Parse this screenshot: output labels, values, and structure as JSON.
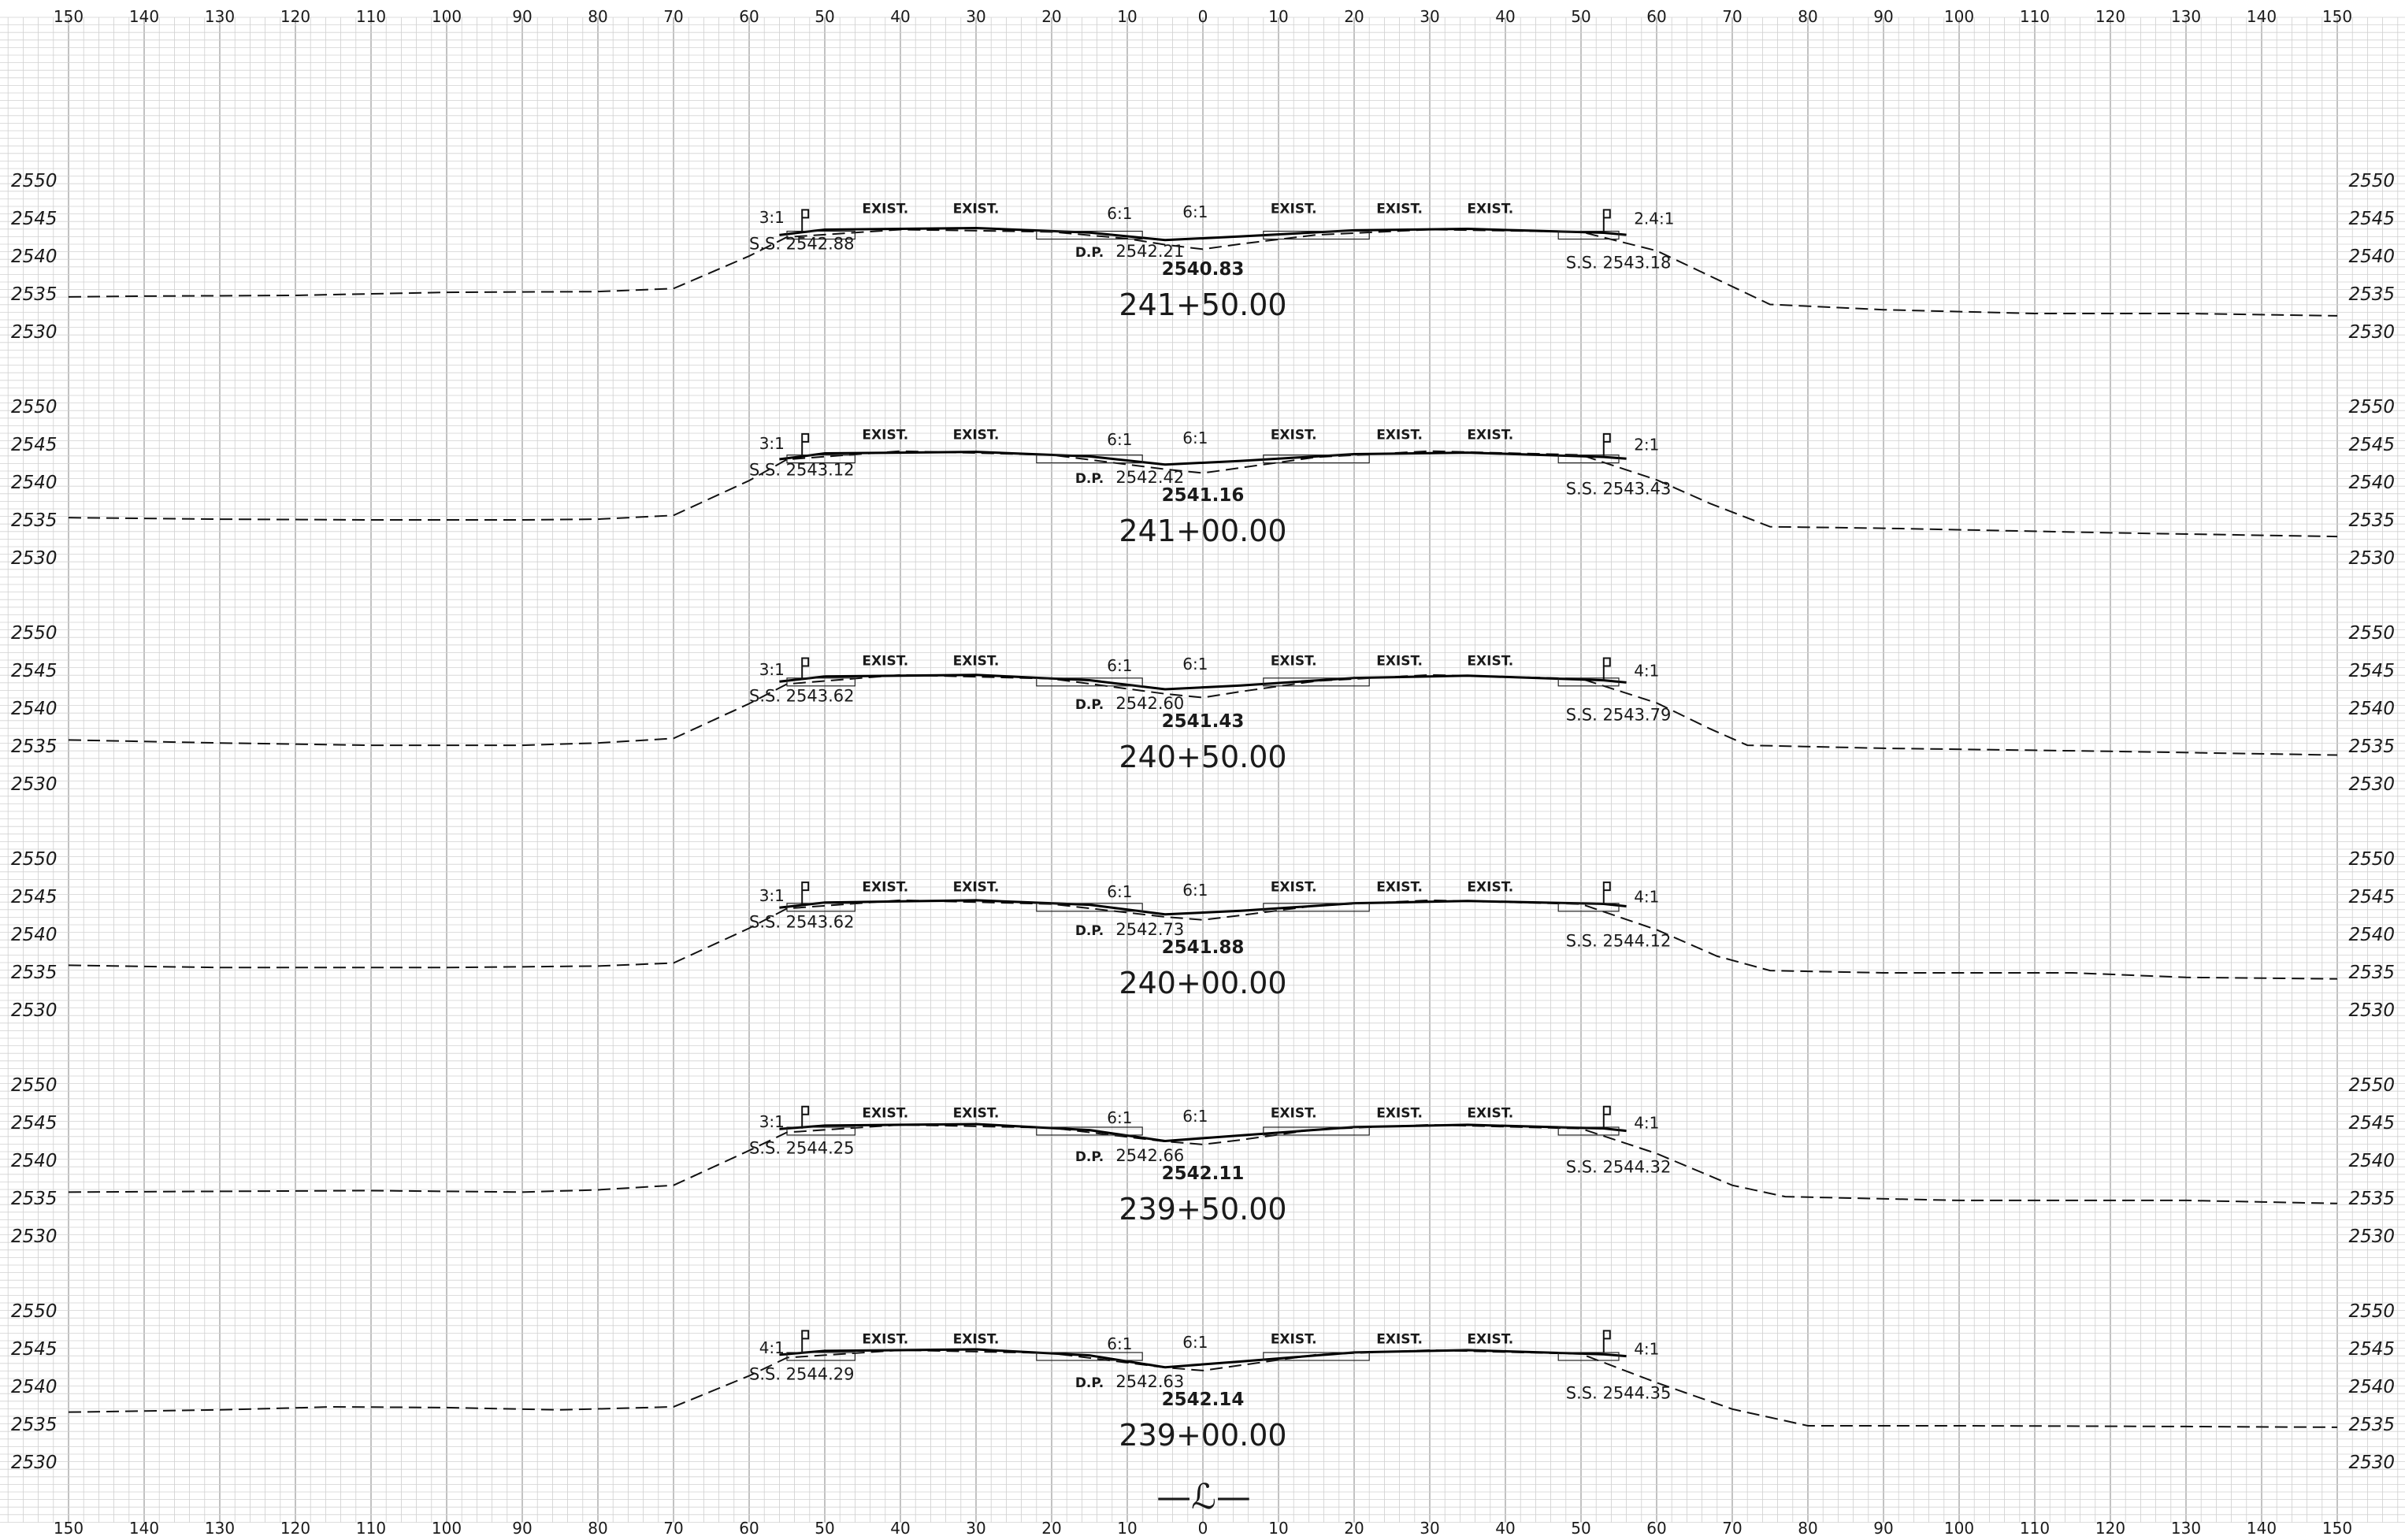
{
  "offset_ticks": [
    "150",
    "140",
    "130",
    "120",
    "110",
    "100",
    "90",
    "80",
    "70",
    "60",
    "50",
    "40",
    "30",
    "20",
    "10",
    "0",
    "10",
    "20",
    "30",
    "40",
    "50",
    "60",
    "70",
    "80",
    "90",
    "100",
    "110",
    "120",
    "130",
    "140",
    "150"
  ],
  "elevation_ticks": [
    "2550",
    "2545",
    "2540",
    "2535",
    "2530"
  ],
  "centerline_symbol": "—ℒ—",
  "sections": [
    {
      "station": "241+50.00",
      "subgrade": "2540.83",
      "dp_label": "D.P.",
      "dp_value": "2542.21",
      "ss_left": "S.S. 2542.88",
      "ss_right": "S.S. 2543.18",
      "slope_left": "3:1",
      "slope_mid_left": "6:1",
      "slope_mid_right": "6:1",
      "slope_right": "2.4:1",
      "exist_labels": [
        "EXIST.",
        "EXIST.",
        "EXIST.",
        "EXIST.",
        "EXIST."
      ],
      "existing": [
        [
          -150,
          2534.7
        ],
        [
          -140,
          2534.8
        ],
        [
          -120,
          2534.9
        ],
        [
          -100,
          2535.3
        ],
        [
          -80,
          2535.4
        ],
        [
          -70,
          2535.8
        ],
        [
          -60,
          2540.1
        ],
        [
          -55,
          2542.6
        ],
        [
          -40,
          2543.6
        ],
        [
          -20,
          2543.3
        ],
        [
          -10,
          2542.4
        ],
        [
          -5,
          2541.6
        ],
        [
          0,
          2541.0
        ],
        [
          5,
          2541.7
        ],
        [
          15,
          2542.9
        ],
        [
          30,
          2543.6
        ],
        [
          50,
          2543.3
        ],
        [
          60,
          2540.8
        ],
        [
          75,
          2533.7
        ],
        [
          90,
          2533.0
        ],
        [
          110,
          2532.5
        ],
        [
          130,
          2532.5
        ],
        [
          150,
          2532.2
        ]
      ],
      "proposed": [
        [
          -56,
          2542.88
        ],
        [
          -50,
          2543.6
        ],
        [
          -30,
          2543.8
        ],
        [
          -15,
          2543.2
        ],
        [
          -5,
          2542.21
        ],
        [
          5,
          2542.7
        ],
        [
          20,
          2543.5
        ],
        [
          35,
          2543.7
        ],
        [
          53,
          2543.18
        ],
        [
          56,
          2542.9
        ]
      ]
    },
    {
      "station": "241+00.00",
      "subgrade": "2541.16",
      "dp_label": "D.P.",
      "dp_value": "2542.42",
      "ss_left": "S.S. 2543.12",
      "ss_right": "S.S. 2543.43",
      "slope_left": "3:1",
      "slope_mid_left": "6:1",
      "slope_mid_right": "6:1",
      "slope_right": "2:1",
      "exist_labels": [
        "EXIST.",
        "EXIST.",
        "EXIST.",
        "EXIST.",
        "EXIST."
      ],
      "existing": [
        [
          -150,
          2535.4
        ],
        [
          -130,
          2535.2
        ],
        [
          -110,
          2535.1
        ],
        [
          -90,
          2535.1
        ],
        [
          -80,
          2535.2
        ],
        [
          -70,
          2535.7
        ],
        [
          -60,
          2540.3
        ],
        [
          -55,
          2543.1
        ],
        [
          -40,
          2544.2
        ],
        [
          -20,
          2543.7
        ],
        [
          -5,
          2541.8
        ],
        [
          0,
          2541.3
        ],
        [
          5,
          2542.0
        ],
        [
          15,
          2543.4
        ],
        [
          30,
          2544.2
        ],
        [
          50,
          2543.7
        ],
        [
          60,
          2540.4
        ],
        [
          67,
          2537.3
        ],
        [
          75,
          2534.2
        ],
        [
          90,
          2534.0
        ],
        [
          120,
          2533.4
        ],
        [
          150,
          2532.9
        ]
      ],
      "proposed": [
        [
          -56,
          2543.12
        ],
        [
          -50,
          2543.9
        ],
        [
          -30,
          2544.1
        ],
        [
          -15,
          2543.5
        ],
        [
          -5,
          2542.42
        ],
        [
          5,
          2542.9
        ],
        [
          20,
          2543.8
        ],
        [
          35,
          2544.0
        ],
        [
          53,
          2543.43
        ],
        [
          56,
          2543.2
        ]
      ]
    },
    {
      "station": "240+50.00",
      "subgrade": "2541.43",
      "dp_label": "D.P.",
      "dp_value": "2542.60",
      "ss_left": "S.S. 2543.62",
      "ss_right": "S.S. 2543.79",
      "slope_left": "3:1",
      "slope_mid_left": "6:1",
      "slope_mid_right": "6:1",
      "slope_right": "4:1",
      "exist_labels": [
        "EXIST.",
        "EXIST.",
        "EXIST.",
        "EXIST.",
        "EXIST."
      ],
      "existing": [
        [
          -150,
          2535.9
        ],
        [
          -130,
          2535.5
        ],
        [
          -110,
          2535.2
        ],
        [
          -90,
          2535.2
        ],
        [
          -80,
          2535.5
        ],
        [
          -70,
          2536.1
        ],
        [
          -60,
          2540.7
        ],
        [
          -55,
          2543.3
        ],
        [
          -40,
          2544.5
        ],
        [
          -20,
          2544.0
        ],
        [
          -5,
          2542.0
        ],
        [
          0,
          2541.5
        ],
        [
          5,
          2542.3
        ],
        [
          15,
          2543.7
        ],
        [
          30,
          2544.5
        ],
        [
          50,
          2544.0
        ],
        [
          60,
          2540.8
        ],
        [
          67,
          2537.4
        ],
        [
          72,
          2535.2
        ],
        [
          90,
          2534.8
        ],
        [
          120,
          2534.4
        ],
        [
          150,
          2533.9
        ]
      ],
      "proposed": [
        [
          -56,
          2543.62
        ],
        [
          -50,
          2544.3
        ],
        [
          -30,
          2544.5
        ],
        [
          -15,
          2543.8
        ],
        [
          -5,
          2542.6
        ],
        [
          5,
          2543.1
        ],
        [
          20,
          2544.1
        ],
        [
          35,
          2544.4
        ],
        [
          53,
          2543.79
        ],
        [
          56,
          2543.5
        ]
      ]
    },
    {
      "station": "240+00.00",
      "subgrade": "2541.88",
      "dp_label": "D.P.",
      "dp_value": "2542.73",
      "ss_left": "S.S. 2543.62",
      "ss_right": "S.S. 2544.12",
      "slope_left": "3:1",
      "slope_mid_left": "6:1",
      "slope_mid_right": "6:1",
      "slope_right": "4:1",
      "exist_labels": [
        "EXIST.",
        "EXIST.",
        "EXIST.",
        "EXIST.",
        "EXIST."
      ],
      "existing": [
        [
          -150,
          2536.0
        ],
        [
          -130,
          2535.7
        ],
        [
          -100,
          2535.7
        ],
        [
          -80,
          2535.9
        ],
        [
          -70,
          2536.3
        ],
        [
          -60,
          2540.9
        ],
        [
          -55,
          2543.5
        ],
        [
          -40,
          2544.6
        ],
        [
          -20,
          2544.1
        ],
        [
          -5,
          2542.4
        ],
        [
          0,
          2542.0
        ],
        [
          5,
          2542.6
        ],
        [
          15,
          2543.9
        ],
        [
          30,
          2544.6
        ],
        [
          50,
          2544.1
        ],
        [
          60,
          2540.7
        ],
        [
          68,
          2537.2
        ],
        [
          75,
          2535.3
        ],
        [
          90,
          2535.0
        ],
        [
          115,
          2535.0
        ],
        [
          130,
          2534.4
        ],
        [
          150,
          2534.2
        ]
      ],
      "proposed": [
        [
          -56,
          2543.62
        ],
        [
          -50,
          2544.3
        ],
        [
          -30,
          2544.6
        ],
        [
          -15,
          2544.0
        ],
        [
          -5,
          2542.73
        ],
        [
          5,
          2543.2
        ],
        [
          20,
          2544.2
        ],
        [
          35,
          2544.5
        ],
        [
          53,
          2544.12
        ],
        [
          56,
          2543.8
        ]
      ]
    },
    {
      "station": "239+50.00",
      "subgrade": "2542.11",
      "dp_label": "D.P.",
      "dp_value": "2542.66",
      "ss_left": "S.S. 2544.25",
      "ss_right": "S.S. 2544.32",
      "slope_left": "3:1",
      "slope_mid_left": "6:1",
      "slope_mid_right": "6:1",
      "slope_right": "4:1",
      "exist_labels": [
        "EXIST.",
        "EXIST.",
        "EXIST.",
        "EXIST.",
        "EXIST."
      ],
      "existing": [
        [
          -150,
          2535.9
        ],
        [
          -130,
          2536.0
        ],
        [
          -110,
          2536.1
        ],
        [
          -90,
          2535.9
        ],
        [
          -80,
          2536.2
        ],
        [
          -70,
          2536.8
        ],
        [
          -60,
          2541.4
        ],
        [
          -55,
          2543.8
        ],
        [
          -40,
          2544.8
        ],
        [
          -20,
          2544.4
        ],
        [
          -5,
          2542.6
        ],
        [
          0,
          2542.2
        ],
        [
          5,
          2542.8
        ],
        [
          15,
          2544.2
        ],
        [
          30,
          2544.8
        ],
        [
          50,
          2544.3
        ],
        [
          60,
          2541.0
        ],
        [
          70,
          2536.8
        ],
        [
          77,
          2535.3
        ],
        [
          100,
          2534.8
        ],
        [
          130,
          2534.8
        ],
        [
          150,
          2534.4
        ]
      ],
      "proposed": [
        [
          -56,
          2544.25
        ],
        [
          -50,
          2544.7
        ],
        [
          -30,
          2544.9
        ],
        [
          -15,
          2544.1
        ],
        [
          -5,
          2542.66
        ],
        [
          5,
          2543.4
        ],
        [
          20,
          2544.5
        ],
        [
          35,
          2544.8
        ],
        [
          53,
          2544.32
        ],
        [
          56,
          2544.0
        ]
      ]
    },
    {
      "station": "239+00.00",
      "subgrade": "2542.14",
      "dp_label": "D.P.",
      "dp_value": "2542.63",
      "ss_left": "S.S. 2544.29",
      "ss_right": "S.S. 2544.35",
      "slope_left": "4:1",
      "slope_mid_left": "6:1",
      "slope_mid_right": "6:1",
      "slope_right": "4:1",
      "exist_labels": [
        "EXIST.",
        "EXIST.",
        "EXIST.",
        "EXIST.",
        "EXIST."
      ],
      "existing": [
        [
          -150,
          2536.7
        ],
        [
          -130,
          2537.0
        ],
        [
          -115,
          2537.4
        ],
        [
          -100,
          2537.3
        ],
        [
          -85,
          2537.0
        ],
        [
          -70,
          2537.4
        ],
        [
          -60,
          2541.5
        ],
        [
          -55,
          2543.9
        ],
        [
          -40,
          2544.9
        ],
        [
          -20,
          2544.5
        ],
        [
          -5,
          2542.6
        ],
        [
          0,
          2542.2
        ],
        [
          5,
          2542.9
        ],
        [
          15,
          2544.3
        ],
        [
          30,
          2544.9
        ],
        [
          50,
          2544.4
        ],
        [
          60,
          2540.6
        ],
        [
          70,
          2537.1
        ],
        [
          80,
          2534.9
        ],
        [
          100,
          2534.9
        ],
        [
          130,
          2534.8
        ],
        [
          150,
          2534.7
        ]
      ],
      "proposed": [
        [
          -56,
          2544.29
        ],
        [
          -50,
          2544.8
        ],
        [
          -30,
          2545.0
        ],
        [
          -15,
          2544.2
        ],
        [
          -5,
          2542.63
        ],
        [
          5,
          2543.4
        ],
        [
          20,
          2544.6
        ],
        [
          35,
          2544.9
        ],
        [
          53,
          2544.35
        ],
        [
          56,
          2544.1
        ]
      ]
    }
  ]
}
